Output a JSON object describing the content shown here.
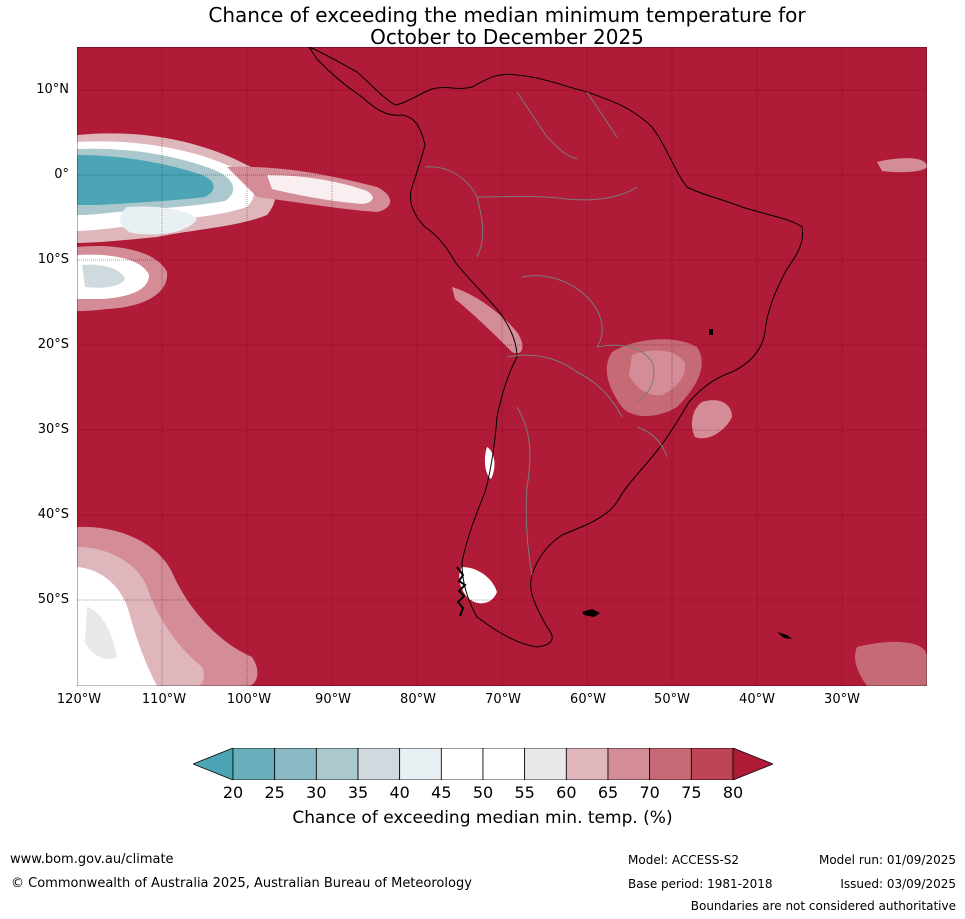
{
  "title_line1": "Chance of exceeding the median minimum temperature for",
  "title_line2": "October to December 2025",
  "map": {
    "land_fill": "#b01b37",
    "latitude_labels": [
      "10°N",
      "0°",
      "10°S",
      "20°S",
      "30°S",
      "40°S",
      "50°S"
    ],
    "longitude_labels": [
      "120°W",
      "110°W",
      "100°W",
      "90°W",
      "80°W",
      "70°W",
      "60°W",
      "50°W",
      "40°W",
      "30°W"
    ]
  },
  "colorbar": {
    "ticks": [
      "20",
      "25",
      "30",
      "35",
      "40",
      "45",
      "50",
      "55",
      "60",
      "65",
      "70",
      "75",
      "80"
    ],
    "colors": [
      "#4ba5b4",
      "#6aaebb",
      "#8bb9c5",
      "#aac8cd",
      "#d0d9dd",
      "#e9f0f3",
      "#ffffff",
      "#ffffff",
      "#e8e8e8",
      "#e0b6bd",
      "#d48c97",
      "#c66a76",
      "#bd4355",
      "#b01b37"
    ],
    "label": "Chance of exceeding median min. temp. (%)"
  },
  "footer": {
    "website": "www.bom.gov.au/climate",
    "copyright": "© Commonwealth of Australia 2025, Australian Bureau of Meteorology",
    "model": "Model: ACCESS-S2",
    "base_period": "Base period: 1981-2018",
    "model_run": "Model run: 01/09/2025",
    "issued": "Issued: 03/09/2025",
    "disclaimer": "Boundaries are not considered authoritative"
  }
}
